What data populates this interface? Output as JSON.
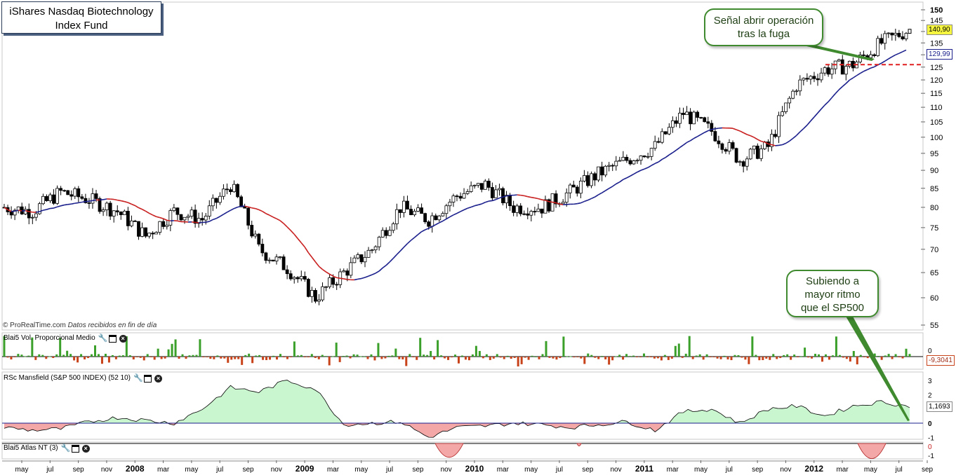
{
  "header": {
    "title_line1": "iShares Nasdaq Biotechnology",
    "title_line2": "Index Fund"
  },
  "callouts": {
    "signal_line1": "Señal abrir operación",
    "signal_line2": "tras la fuga",
    "rising_line1": "Subiendo a",
    "rising_line2": "mayor ritmo",
    "rising_line3": "que el SP500"
  },
  "source_note": {
    "brand": "© ProRealTime.com",
    "text": "Datos recibidos en fin de día"
  },
  "panels": {
    "volume_label": "Blai5 Vol. Proporcional Medio",
    "volume_value": "-9,3041",
    "rsc_label": "RSc Mansfield (S&P 500 INDEX) (52 10)",
    "rsc_value": "1,1693",
    "atlas_label": "Blai5 Atlas NT (3)"
  },
  "price_tags": {
    "last_price": "140,90",
    "ma_value": "129,99"
  },
  "colors": {
    "candle_outline": "#000000",
    "ma_blue": "#1a1f8c",
    "ma_red": "#c81e1e",
    "vol_up": "#3aa02a",
    "vol_down": "#c8421a",
    "rsc_pos_fill": "#c9f5cf",
    "rsc_neg_fill": "#f3a7a7",
    "breakout_line": "#e02020",
    "callout_border": "#3f8a2e",
    "price_tag_bg": "#f6f640"
  },
  "chart_data": [
    {
      "type": "candlestick",
      "title": "iShares Nasdaq Biotechnology Index Fund",
      "x": [
        "may 2007",
        "jul 2007",
        "sep 2007",
        "nov 2007",
        "2008",
        "mar 2008",
        "may 2008",
        "jul 2008",
        "sep 2008",
        "nov 2008",
        "2009",
        "mar 2009",
        "may 2009",
        "jul 2009",
        "sep 2009",
        "nov 2009",
        "2010",
        "mar 2010",
        "may 2010",
        "jul 2010",
        "sep 2010",
        "nov 2010",
        "2011",
        "mar 2011",
        "may 2011",
        "jul 2011",
        "sep 2011",
        "nov 2011",
        "2012",
        "mar 2012",
        "may 2012",
        "jul 2012",
        "sep 2012"
      ],
      "x_tick_labels": [
        "may",
        "jul",
        "sep",
        "nov",
        "2008",
        "mar",
        "may",
        "jul",
        "sep",
        "nov",
        "2009",
        "mar",
        "may",
        "jul",
        "sep",
        "nov",
        "2010",
        "mar",
        "may",
        "jul",
        "sep",
        "nov",
        "2011",
        "mar",
        "may",
        "jul",
        "sep",
        "nov",
        "2012",
        "mar",
        "may",
        "jul",
        "sep"
      ],
      "close": [
        80,
        79,
        84,
        82,
        79,
        73,
        79,
        77,
        86,
        70,
        66,
        60,
        65,
        70,
        80,
        77,
        83,
        86,
        80,
        80,
        84,
        89,
        93,
        97,
        108,
        102,
        93,
        97,
        118,
        124,
        126,
        135,
        141
      ],
      "ylim": [
        55,
        150
      ],
      "yticks": [
        55,
        60,
        65,
        70,
        75,
        80,
        85,
        90,
        95,
        100,
        105,
        110,
        115,
        120,
        125,
        130,
        135,
        140,
        145,
        150
      ],
      "breakout_level": 126,
      "last_price": 140.9,
      "moving_average_last": 129.99
    },
    {
      "type": "bar",
      "title": "Blai5 Vol. Proporcional Medio",
      "last_value": -9.3041,
      "yticks": [
        0
      ]
    },
    {
      "type": "area",
      "title": "RSc Mansfield (S&P 500 INDEX) (52 10)",
      "values": [
        -0.3,
        -0.5,
        -0.4,
        0.1,
        0.4,
        0.2,
        0.0,
        1.0,
        2.5,
        2.2,
        3.0,
        2.4,
        -0.1,
        0.0,
        0.1,
        -1.0,
        -0.3,
        -0.2,
        0.0,
        -0.1,
        -0.3,
        -0.1,
        0.1,
        -0.5,
        0.8,
        1.0,
        0.0,
        1.0,
        1.2,
        0.5,
        1.2,
        1.5,
        1.17
      ],
      "ylim": [
        -1,
        3.3
      ],
      "yticks": [
        -1,
        0,
        1,
        2,
        3
      ],
      "last_value": 1.1693
    },
    {
      "type": "area",
      "title": "Blai5 Atlas NT (3)",
      "ylim": [
        -1,
        0.3
      ],
      "yticks": [
        -1,
        0
      ]
    }
  ]
}
